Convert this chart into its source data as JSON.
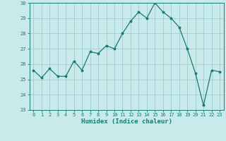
{
  "x": [
    0,
    1,
    2,
    3,
    4,
    5,
    6,
    7,
    8,
    9,
    10,
    11,
    12,
    13,
    14,
    15,
    16,
    17,
    18,
    19,
    20,
    21,
    22,
    23
  ],
  "y": [
    25.6,
    25.1,
    25.7,
    25.2,
    25.2,
    26.2,
    25.6,
    26.8,
    26.7,
    27.2,
    27.0,
    28.0,
    28.8,
    29.4,
    29.0,
    30.0,
    29.4,
    29.0,
    28.4,
    27.0,
    25.4,
    23.3,
    25.6,
    25.5
  ],
  "xlabel": "Humidex (Indice chaleur)",
  "ylim": [
    23,
    30
  ],
  "xlim": [
    -0.5,
    23.5
  ],
  "yticks": [
    23,
    24,
    25,
    26,
    27,
    28,
    29,
    30
  ],
  "xticks": [
    0,
    1,
    2,
    3,
    4,
    5,
    6,
    7,
    8,
    9,
    10,
    11,
    12,
    13,
    14,
    15,
    16,
    17,
    18,
    19,
    20,
    21,
    22,
    23
  ],
  "line_color": "#1a7a6e",
  "marker": "*",
  "bg_color": "#c8eaea",
  "grid_color": "#9ecece",
  "axis_color": "#1a7a6e",
  "label_color": "#1a7a6e",
  "tick_fontsize": 5.0,
  "xlabel_fontsize": 6.5
}
